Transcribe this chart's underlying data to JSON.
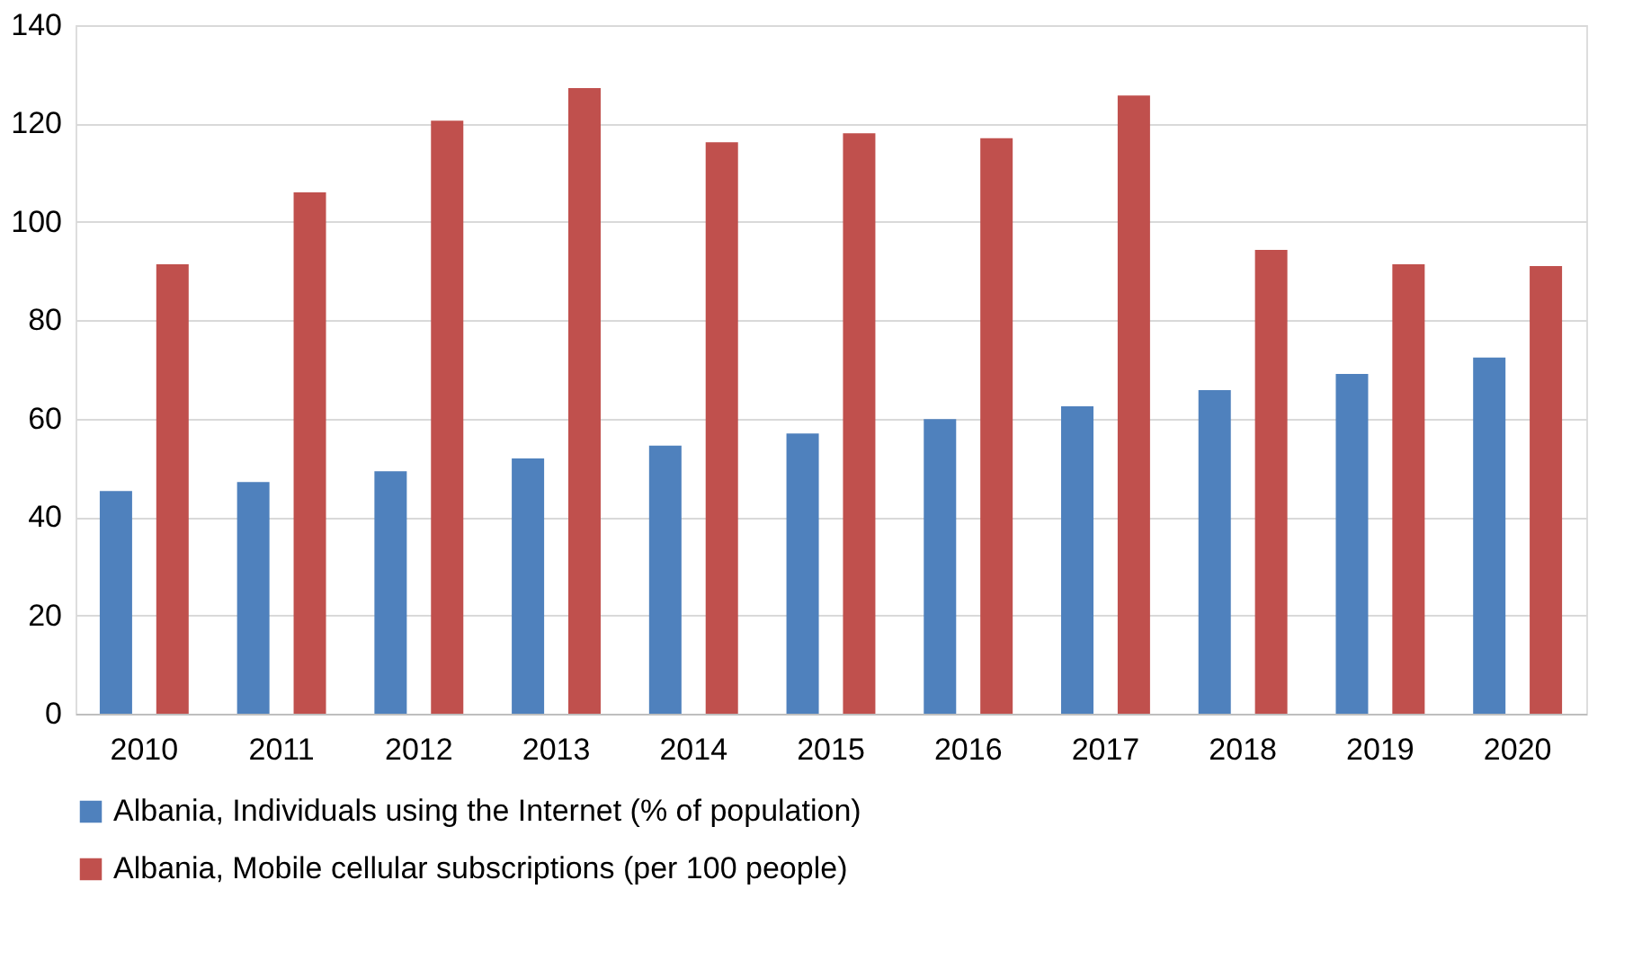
{
  "chart_data": {
    "type": "bar",
    "categories": [
      "2010",
      "2011",
      "2012",
      "2013",
      "2014",
      "2015",
      "2016",
      "2017",
      "2018",
      "2019",
      "2020"
    ],
    "series": [
      {
        "name": "Albania,  Individuals using the Internet (% of population)",
        "color": "#4f81bd",
        "values": [
          45.3,
          47.1,
          49.3,
          51.9,
          54.5,
          57.0,
          59.9,
          62.5,
          65.8,
          69.1,
          72.4
        ]
      },
      {
        "name": "Albania,  Mobile cellular subscriptions (per 100 people)",
        "color": "#c0504d",
        "values": [
          91.4,
          106,
          120.6,
          127.2,
          116.2,
          118,
          117,
          125.7,
          94.3,
          91.4,
          91
        ]
      }
    ],
    "ylim": [
      0,
      140
    ],
    "yticks": [
      0,
      20,
      40,
      60,
      80,
      100,
      120,
      140
    ],
    "grid": "y",
    "legend": "bottom"
  }
}
